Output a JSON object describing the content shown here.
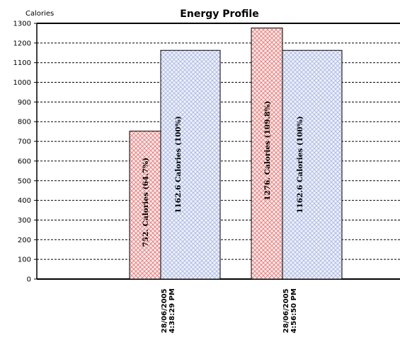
{
  "chart_data": {
    "type": "bar",
    "title": "Energy Profile",
    "ylabel": "Calories",
    "xlabel": "",
    "ylim": [
      0,
      1300
    ],
    "ytick_step": 100,
    "grid": true,
    "categories": [
      {
        "line1": "28/06/2005",
        "line2": "4:38:29 PM"
      },
      {
        "line1": "28/06/2005",
        "line2": "4:56:50 PM"
      }
    ],
    "series": [
      {
        "values": [
          752,
          1276
        ],
        "pattern": "red-crosshatch",
        "color": "#e8a0a0"
      },
      {
        "values": [
          1162.6,
          1162.6
        ],
        "pattern": "blue-crosshatch",
        "color": "#a9b8e0"
      }
    ],
    "data_labels": [
      [
        "752. Calories (64.7%)",
        "1276. Calories (109.8%)"
      ],
      [
        "1162.6 Calories (100%)",
        "1162.6 Calories (100%)"
      ]
    ]
  }
}
